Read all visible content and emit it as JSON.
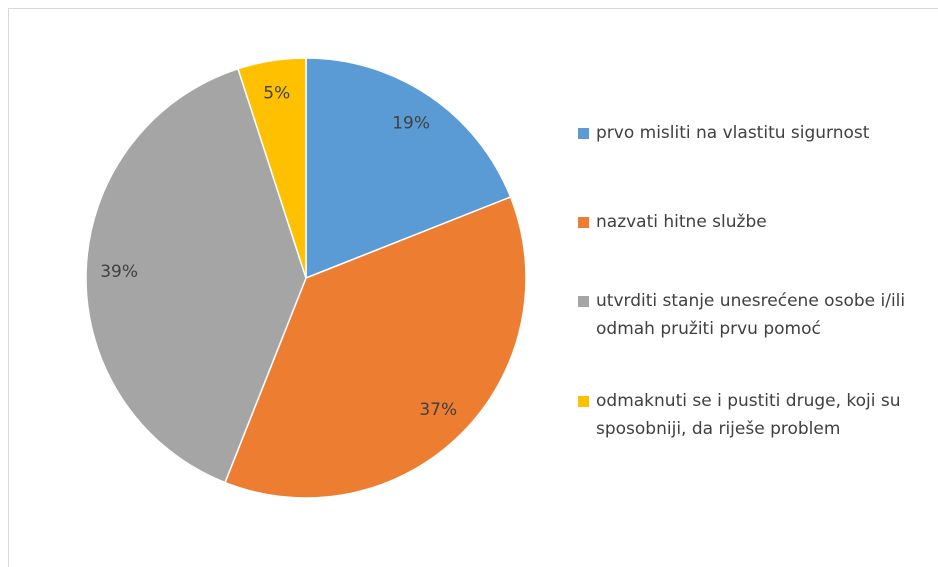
{
  "chart_data": {
    "type": "pie",
    "categories": [
      "prvo misliti na vlastitu sigurnost",
      "nazvati hitne službe",
      "utvrditi stanje unesrećene osobe i/ili odmah pružiti prvu pomoć",
      "odmaknuti se i pustiti druge, koji su sposobniji, da riješe problem"
    ],
    "values": [
      19,
      37,
      39,
      5
    ],
    "value_labels": [
      "19%",
      "37%",
      "39%",
      "5%"
    ],
    "colors": [
      "#5b9bd5",
      "#ed7d31",
      "#a5a5a5",
      "#ffc000"
    ],
    "legend": "right"
  }
}
